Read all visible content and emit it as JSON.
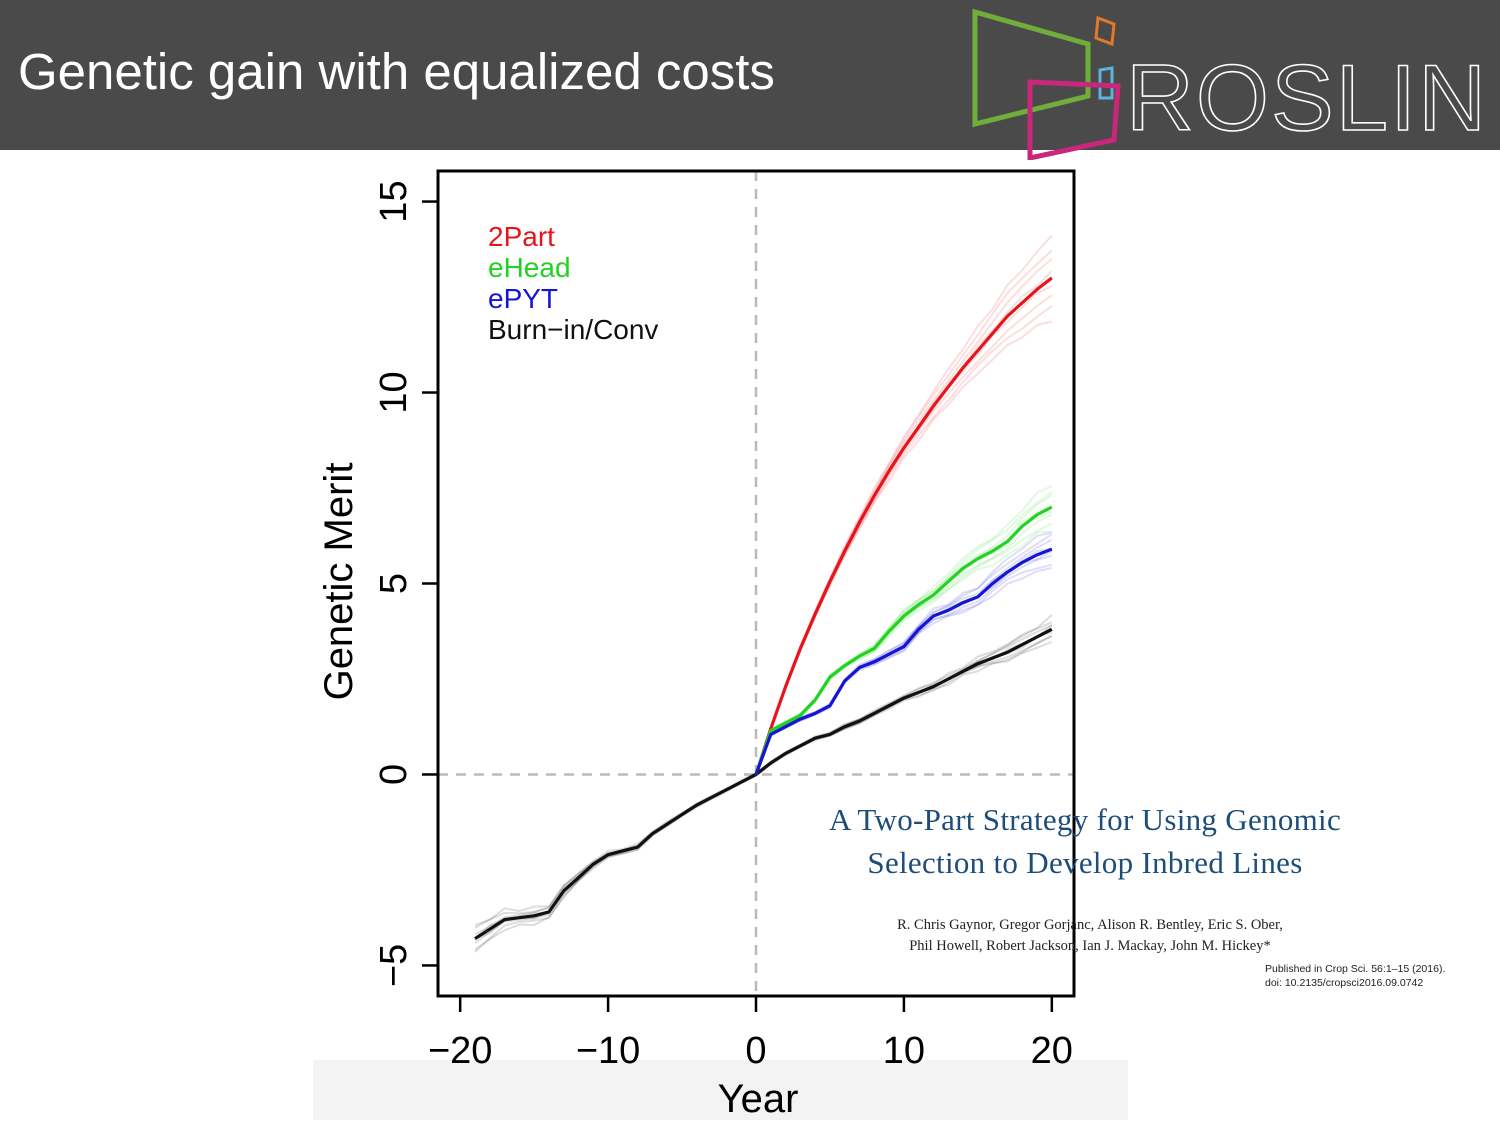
{
  "slide": {
    "title": "Genetic gain with equalized costs",
    "logo_text": "ROSLIN"
  },
  "colors": {
    "header_bg": "#4a4a4a",
    "twopart": "#e8141b",
    "ehead": "#22d322",
    "epyt": "#1515d4",
    "burnin": "#111111",
    "paper_title": "#1d4e7a"
  },
  "paper": {
    "title_line1": "A Two-Part Strategy for Using Genomic",
    "title_line2": "Selection to Develop Inbred Lines",
    "authors_line1": "R. Chris Gaynor, Gregor Gorjanc, Alison R. Bentley, Eric S. Ober,",
    "authors_line2": "Phil Howell, Robert Jackson, Ian J. Mackay, John M. Hickey*",
    "published": "Published in Crop Sci. 56:1–15 (2016).",
    "doi": "doi: 10.2135/cropsci2016.09.0742"
  },
  "chart_data": {
    "type": "line",
    "xlabel": "Year",
    "ylabel": "Genetic Merit",
    "xlim": [
      -21.5,
      21.5
    ],
    "ylim": [
      -5.8,
      15.8
    ],
    "xticks": [
      -20,
      -10,
      0,
      10,
      20
    ],
    "xtick_labels": [
      "−20",
      "−10",
      "0",
      "10",
      "20"
    ],
    "yticks": [
      -5,
      0,
      5,
      10,
      15
    ],
    "ytick_labels": [
      "−5",
      "0",
      "5",
      "10",
      "15"
    ],
    "reference_lines": {
      "x": 0,
      "y": 0,
      "style": "dashed"
    },
    "legend": {
      "placement": "top-left",
      "entries": [
        {
          "label": "2Part",
          "color": "#e8141b"
        },
        {
          "label": "eHead",
          "color": "#22d322"
        },
        {
          "label": "ePYT",
          "color": "#1515d4"
        },
        {
          "label": "Burn−in/Conv",
          "color": "#111111"
        }
      ]
    },
    "series": [
      {
        "color": "#111111",
        "x": [
          -19,
          -18,
          -17,
          -16,
          -15,
          -14,
          -13,
          -12,
          -11,
          -10,
          -9,
          -8,
          -7,
          -6,
          -5,
          -4,
          -3,
          -2,
          -1,
          0
        ],
        "y": [
          -4.3,
          -4.05,
          -3.8,
          -3.75,
          -3.7,
          -3.6,
          -3.05,
          -2.7,
          -2.35,
          -2.1,
          -2.0,
          -1.9,
          -1.55,
          -1.3,
          -1.05,
          -0.8,
          -0.6,
          -0.4,
          -0.2,
          0
        ]
      },
      {
        "color": "#111111",
        "x": [
          0,
          1,
          2,
          3,
          4,
          5,
          6,
          7,
          8,
          9,
          10,
          11,
          12,
          13,
          14,
          15,
          16,
          17,
          18,
          19,
          20
        ],
        "y": [
          0,
          0.3,
          0.55,
          0.75,
          0.95,
          1.05,
          1.25,
          1.4,
          1.6,
          1.8,
          2.0,
          2.15,
          2.3,
          2.5,
          2.7,
          2.9,
          3.05,
          3.2,
          3.4,
          3.6,
          3.8
        ]
      },
      {
        "color": "#e8141b",
        "x": [
          0,
          1,
          2,
          3,
          4,
          5,
          6,
          7,
          8,
          9,
          10,
          11,
          12,
          13,
          14,
          15,
          16,
          17,
          18,
          19,
          20
        ],
        "y": [
          0,
          1.2,
          2.3,
          3.3,
          4.2,
          5.05,
          5.85,
          6.6,
          7.3,
          7.95,
          8.55,
          9.1,
          9.65,
          10.15,
          10.65,
          11.1,
          11.55,
          12.0,
          12.35,
          12.7,
          13.0
        ]
      },
      {
        "color": "#22d322",
        "x": [
          0,
          1,
          2,
          3,
          4,
          5,
          6,
          7,
          8,
          9,
          10,
          11,
          12,
          13,
          14,
          15,
          16,
          17,
          18,
          19,
          20
        ],
        "y": [
          0,
          1.15,
          1.35,
          1.55,
          1.95,
          2.55,
          2.85,
          3.1,
          3.3,
          3.75,
          4.15,
          4.45,
          4.7,
          5.05,
          5.4,
          5.65,
          5.85,
          6.1,
          6.5,
          6.8,
          7.0
        ]
      },
      {
        "color": "#1515d4",
        "x": [
          0,
          1,
          2,
          3,
          4,
          5,
          6,
          7,
          8,
          9,
          10,
          11,
          12,
          13,
          14,
          15,
          16,
          17,
          18,
          19,
          20
        ],
        "y": [
          0,
          1.05,
          1.25,
          1.45,
          1.6,
          1.8,
          2.45,
          2.8,
          2.95,
          3.15,
          3.35,
          3.8,
          4.15,
          4.3,
          4.5,
          4.65,
          5.0,
          5.3,
          5.55,
          5.75,
          5.9
        ]
      }
    ]
  }
}
